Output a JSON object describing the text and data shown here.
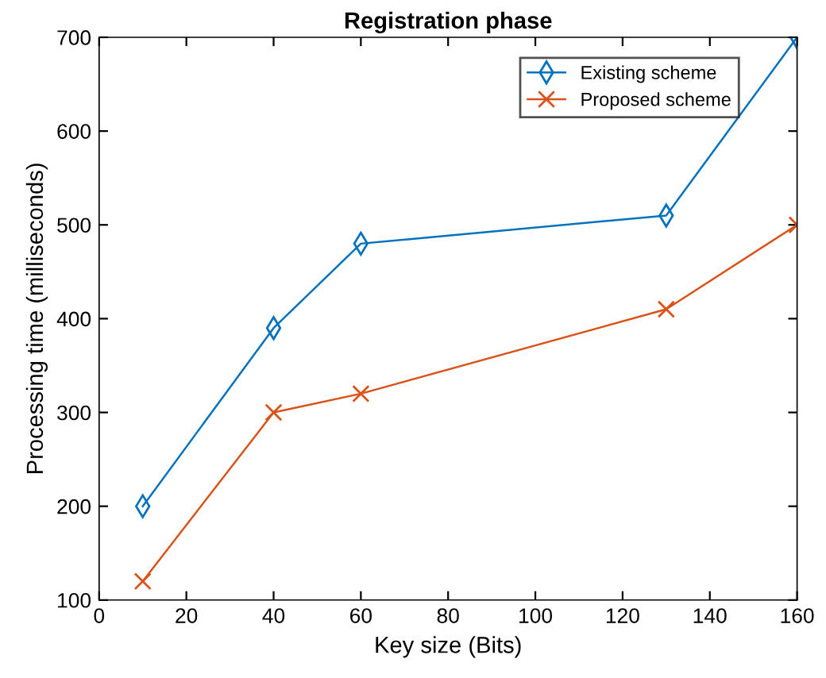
{
  "chart_data": {
    "type": "line",
    "title": "Registration phase",
    "xlabel": "Key size (Bits)",
    "ylabel": "Processing time (milliseconds)",
    "x": [
      10,
      40,
      60,
      130,
      160
    ],
    "series": [
      {
        "name": "Existing scheme",
        "color": "#0072bd",
        "marker": "diamond",
        "values": [
          200,
          390,
          480,
          510,
          700
        ]
      },
      {
        "name": "Proposed scheme",
        "color": "#d95319",
        "marker": "cross",
        "values": [
          120,
          300,
          320,
          410,
          500
        ]
      }
    ],
    "xlim": [
      0,
      160
    ],
    "xticks": [
      0,
      20,
      40,
      60,
      80,
      100,
      120,
      140,
      160
    ],
    "ylim": [
      100,
      700
    ],
    "yticks": [
      100,
      200,
      300,
      400,
      500,
      600,
      700
    ],
    "grid": false,
    "legend": "top right",
    "line_style": "solid"
  }
}
